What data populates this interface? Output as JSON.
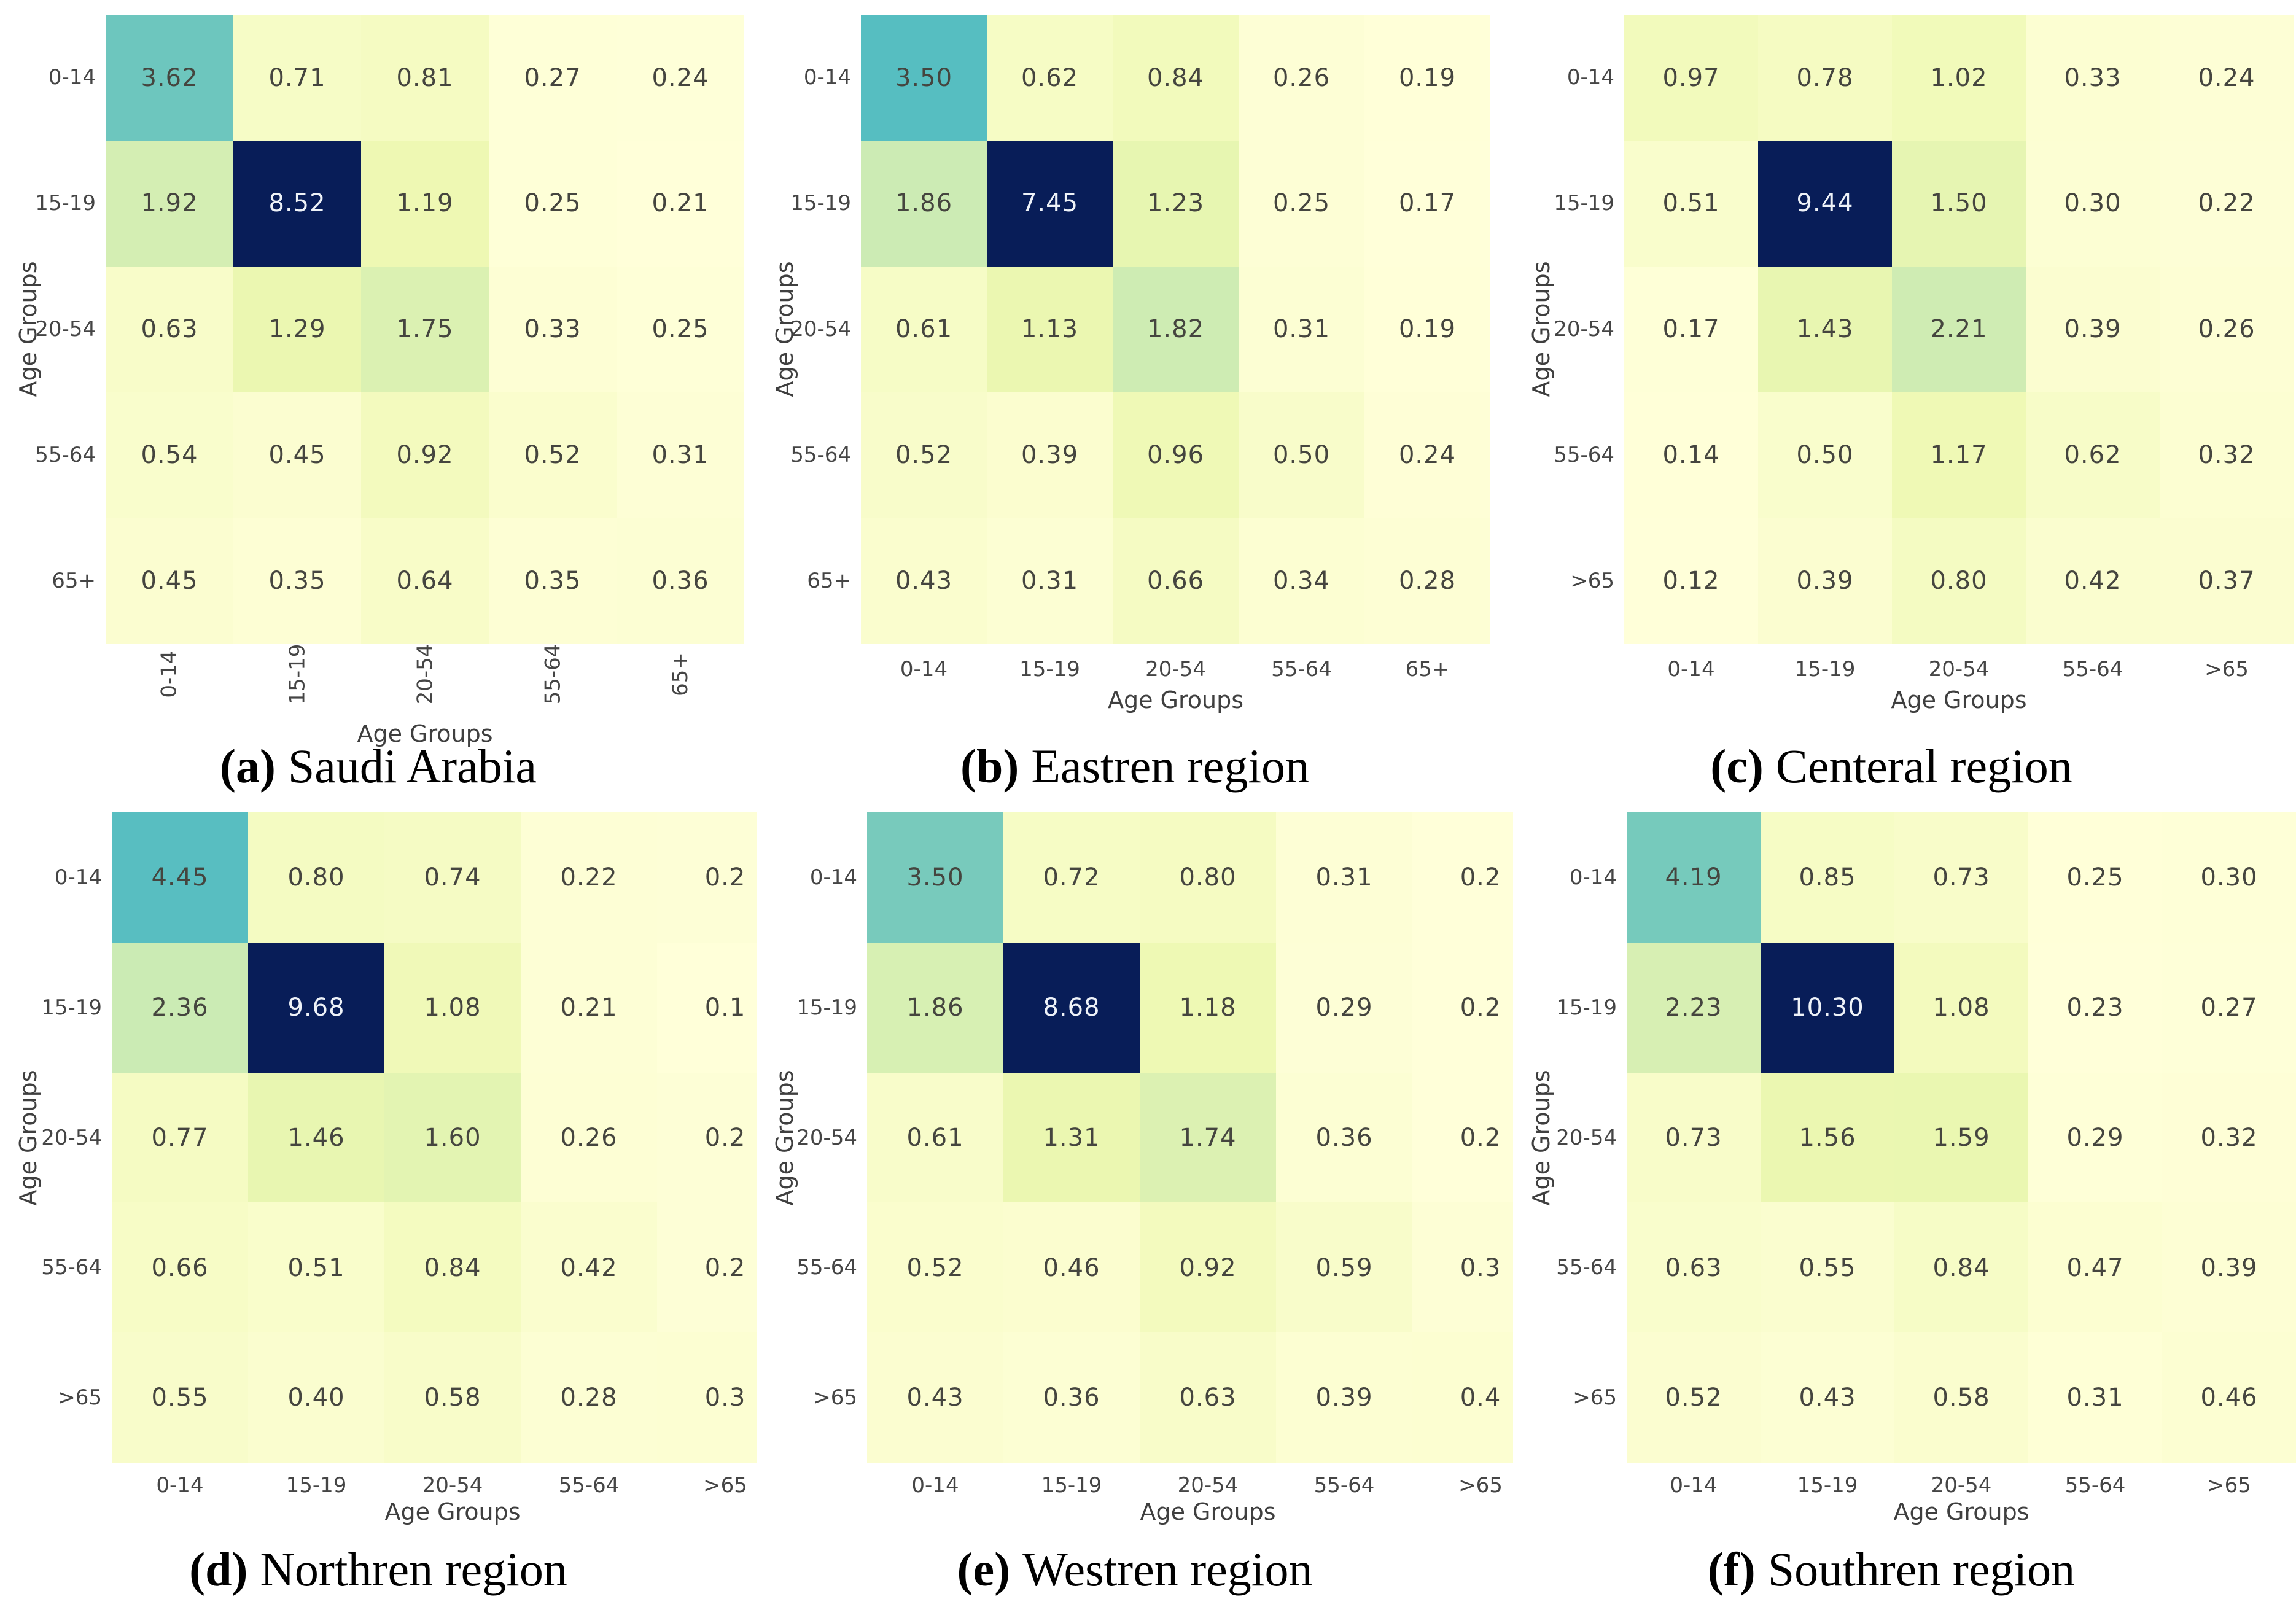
{
  "figure": {
    "axis_label": "Age Groups"
  },
  "colors": {
    "colormap": "YlGnBu",
    "colormap_anchors": [
      "#ffffd9",
      "#edf8b1",
      "#c7e9b4",
      "#7fcdbb",
      "#41b6c4",
      "#1d91c0",
      "#225ea8",
      "#253494",
      "#081d58"
    ],
    "cell_text_dark": "#45453f",
    "cell_text_light": "#eef2f8",
    "tick_text": "#454545"
  },
  "subplots": [
    {
      "id": "a",
      "caption_prefix": "(a)",
      "caption_text": "Saudi Arabia",
      "row_labels": [
        "0-14",
        "15-19",
        "20-54",
        "55-64",
        "65+"
      ],
      "col_labels": [
        "0-14",
        "15-19",
        "20-54",
        "55-64",
        "65+"
      ],
      "cells": [
        [
          "3.62",
          "0.71",
          "0.81",
          "0.27",
          "0.24"
        ],
        [
          "1.92",
          "8.52",
          "1.19",
          "0.25",
          "0.21"
        ],
        [
          "0.63",
          "1.29",
          "1.75",
          "0.33",
          "0.25"
        ],
        [
          "0.54",
          "0.45",
          "0.92",
          "0.52",
          "0.31"
        ],
        [
          "0.45",
          "0.35",
          "0.64",
          "0.35",
          "0.36"
        ]
      ]
    },
    {
      "id": "b",
      "caption_prefix": "(b)",
      "caption_text": "Eastren region",
      "row_labels": [
        "0-14",
        "15-19",
        "20-54",
        "55-64",
        "65+"
      ],
      "col_labels": [
        "0-14",
        "15-19",
        "20-54",
        "55-64",
        "65+"
      ],
      "cells": [
        [
          "3.50",
          "0.62",
          "0.84",
          "0.26",
          "0.19"
        ],
        [
          "1.86",
          "7.45",
          "1.23",
          "0.25",
          "0.17"
        ],
        [
          "0.61",
          "1.13",
          "1.82",
          "0.31",
          "0.19"
        ],
        [
          "0.52",
          "0.39",
          "0.96",
          "0.50",
          "0.24"
        ],
        [
          "0.43",
          "0.31",
          "0.66",
          "0.34",
          "0.28"
        ]
      ]
    },
    {
      "id": "c",
      "caption_prefix": "(c)",
      "caption_text": "Centeral region",
      "row_labels": [
        "0-14",
        "15-19",
        "20-54",
        "55-64",
        ">65"
      ],
      "col_labels": [
        "0-14",
        "15-19",
        "20-54",
        "55-64",
        ">65"
      ],
      "cells": [
        [
          "0.97",
          "0.78",
          "1.02",
          "0.33",
          "0.24"
        ],
        [
          "0.51",
          "9.44",
          "1.50",
          "0.30",
          "0.22"
        ],
        [
          "0.17",
          "1.43",
          "2.21",
          "0.39",
          "0.26"
        ],
        [
          "0.14",
          "0.50",
          "1.17",
          "0.62",
          "0.32"
        ],
        [
          "0.12",
          "0.39",
          "0.80",
          "0.42",
          "0.37"
        ]
      ]
    },
    {
      "id": "d",
      "caption_prefix": "(d)",
      "caption_text": "Northren region",
      "row_labels": [
        "0-14",
        "15-19",
        "20-54",
        "55-64",
        ">65"
      ],
      "col_labels": [
        "0-14",
        "15-19",
        "20-54",
        "55-64",
        ">65"
      ],
      "cells": [
        [
          "4.45",
          "0.80",
          "0.74",
          "0.22",
          "0.2"
        ],
        [
          "2.36",
          "9.68",
          "1.08",
          "0.21",
          "0.1"
        ],
        [
          "0.77",
          "1.46",
          "1.60",
          "0.26",
          "0.2"
        ],
        [
          "0.66",
          "0.51",
          "0.84",
          "0.42",
          "0.2"
        ],
        [
          "0.55",
          "0.40",
          "0.58",
          "0.28",
          "0.3"
        ]
      ]
    },
    {
      "id": "e",
      "caption_prefix": "(e)",
      "caption_text": "Westren region",
      "row_labels": [
        "0-14",
        "15-19",
        "20-54",
        "55-64",
        ">65"
      ],
      "col_labels": [
        "0-14",
        "15-19",
        "20-54",
        "55-64",
        ">65"
      ],
      "cells": [
        [
          "3.50",
          "0.72",
          "0.80",
          "0.31",
          "0.2"
        ],
        [
          "1.86",
          "8.68",
          "1.18",
          "0.29",
          "0.2"
        ],
        [
          "0.61",
          "1.31",
          "1.74",
          "0.36",
          "0.2"
        ],
        [
          "0.52",
          "0.46",
          "0.92",
          "0.59",
          "0.3"
        ],
        [
          "0.43",
          "0.36",
          "0.63",
          "0.39",
          "0.4"
        ]
      ]
    },
    {
      "id": "f",
      "caption_prefix": "(f)",
      "caption_text": "Southren region",
      "row_labels": [
        "0-14",
        "15-19",
        "20-54",
        "55-64",
        ">65"
      ],
      "col_labels": [
        "0-14",
        "15-19",
        "20-54",
        "55-64",
        ">65"
      ],
      "cells": [
        [
          "4.19",
          "0.85",
          "0.73",
          "0.25",
          "0.30"
        ],
        [
          "2.23",
          "10.30",
          "1.08",
          "0.23",
          "0.27"
        ],
        [
          "0.73",
          "1.56",
          "1.59",
          "0.29",
          "0.32"
        ],
        [
          "0.63",
          "0.55",
          "0.84",
          "0.47",
          "0.39"
        ],
        [
          "0.52",
          "0.43",
          "0.58",
          "0.31",
          "0.46"
        ]
      ]
    }
  ],
  "chart_data": [
    {
      "type": "heatmap",
      "title": "(a) Saudi Arabia",
      "xlabel": "Age Groups",
      "ylabel": "Age Groups",
      "x": [
        "0-14",
        "15-19",
        "20-54",
        "55-64",
        "65+"
      ],
      "y": [
        "0-14",
        "15-19",
        "20-54",
        "55-64",
        "65+"
      ],
      "values": [
        [
          3.62,
          0.71,
          0.81,
          0.27,
          0.24
        ],
        [
          1.92,
          8.52,
          1.19,
          0.25,
          0.21
        ],
        [
          0.63,
          1.29,
          1.75,
          0.33,
          0.25
        ],
        [
          0.54,
          0.45,
          0.92,
          0.52,
          0.31
        ],
        [
          0.45,
          0.35,
          0.64,
          0.35,
          0.36
        ]
      ],
      "colormap": "YlGnBu",
      "grid": false,
      "legend": "none"
    },
    {
      "type": "heatmap",
      "title": "(b) Eastren region",
      "xlabel": "Age Groups",
      "ylabel": "Age Groups",
      "x": [
        "0-14",
        "15-19",
        "20-54",
        "55-64",
        "65+"
      ],
      "y": [
        "0-14",
        "15-19",
        "20-54",
        "55-64",
        "65+"
      ],
      "values": [
        [
          3.5,
          0.62,
          0.84,
          0.26,
          0.19
        ],
        [
          1.86,
          7.45,
          1.23,
          0.25,
          0.17
        ],
        [
          0.61,
          1.13,
          1.82,
          0.31,
          0.19
        ],
        [
          0.52,
          0.39,
          0.96,
          0.5,
          0.24
        ],
        [
          0.43,
          0.31,
          0.66,
          0.34,
          0.28
        ]
      ],
      "colormap": "YlGnBu",
      "grid": false,
      "legend": "none"
    },
    {
      "type": "heatmap",
      "title": "(c) Centeral region",
      "xlabel": "Age Groups",
      "ylabel": "Age Groups",
      "x": [
        "0-14",
        "15-19",
        "20-54",
        "55-64",
        ">65"
      ],
      "y": [
        "0-14",
        "15-19",
        "20-54",
        "55-64",
        ">65"
      ],
      "values": [
        [
          0.97,
          0.78,
          1.02,
          0.33,
          0.24
        ],
        [
          0.51,
          9.44,
          1.5,
          0.3,
          0.22
        ],
        [
          0.17,
          1.43,
          2.21,
          0.39,
          0.26
        ],
        [
          0.14,
          0.5,
          1.17,
          0.62,
          0.32
        ],
        [
          0.12,
          0.39,
          0.8,
          0.42,
          0.37
        ]
      ],
      "colormap": "YlGnBu",
      "grid": false,
      "legend": "none"
    },
    {
      "type": "heatmap",
      "title": "(d) Northren region",
      "xlabel": "Age Groups",
      "ylabel": "Age Groups",
      "x": [
        "0-14",
        "15-19",
        "20-54",
        "55-64",
        ">65"
      ],
      "y": [
        "0-14",
        "15-19",
        "20-54",
        "55-64",
        ">65"
      ],
      "values": [
        [
          4.45,
          0.8,
          0.74,
          0.22,
          0.2
        ],
        [
          2.36,
          9.68,
          1.08,
          0.21,
          0.1
        ],
        [
          0.77,
          1.46,
          1.6,
          0.26,
          0.2
        ],
        [
          0.66,
          0.51,
          0.84,
          0.42,
          0.2
        ],
        [
          0.55,
          0.4,
          0.58,
          0.28,
          0.3
        ]
      ],
      "note": "last column partially cut off at figure edge",
      "colormap": "YlGnBu",
      "grid": false,
      "legend": "none"
    },
    {
      "type": "heatmap",
      "title": "(e) Westren region",
      "xlabel": "Age Groups",
      "ylabel": "Age Groups",
      "x": [
        "0-14",
        "15-19",
        "20-54",
        "55-64",
        ">65"
      ],
      "y": [
        "0-14",
        "15-19",
        "20-54",
        "55-64",
        ">65"
      ],
      "values": [
        [
          3.5,
          0.72,
          0.8,
          0.31,
          0.2
        ],
        [
          1.86,
          8.68,
          1.18,
          0.29,
          0.2
        ],
        [
          0.61,
          1.31,
          1.74,
          0.36,
          0.2
        ],
        [
          0.52,
          0.46,
          0.92,
          0.59,
          0.3
        ],
        [
          0.43,
          0.36,
          0.63,
          0.39,
          0.4
        ]
      ],
      "note": "last column partially cut off at figure edge",
      "colormap": "YlGnBu",
      "grid": false,
      "legend": "none"
    },
    {
      "type": "heatmap",
      "title": "(f) Southren region",
      "xlabel": "Age Groups",
      "ylabel": "Age Groups",
      "x": [
        "0-14",
        "15-19",
        "20-54",
        "55-64",
        ">65"
      ],
      "y": [
        "0-14",
        "15-19",
        "20-54",
        "55-64",
        ">65"
      ],
      "values": [
        [
          4.19,
          0.85,
          0.73,
          0.25,
          0.3
        ],
        [
          2.23,
          10.3,
          1.08,
          0.23,
          0.27
        ],
        [
          0.73,
          1.56,
          1.59,
          0.29,
          0.32
        ],
        [
          0.63,
          0.55,
          0.84,
          0.47,
          0.39
        ],
        [
          0.52,
          0.43,
          0.58,
          0.31,
          0.46
        ]
      ],
      "note": "last column slightly cut off at figure edge",
      "colormap": "YlGnBu",
      "grid": false,
      "legend": "none"
    }
  ]
}
